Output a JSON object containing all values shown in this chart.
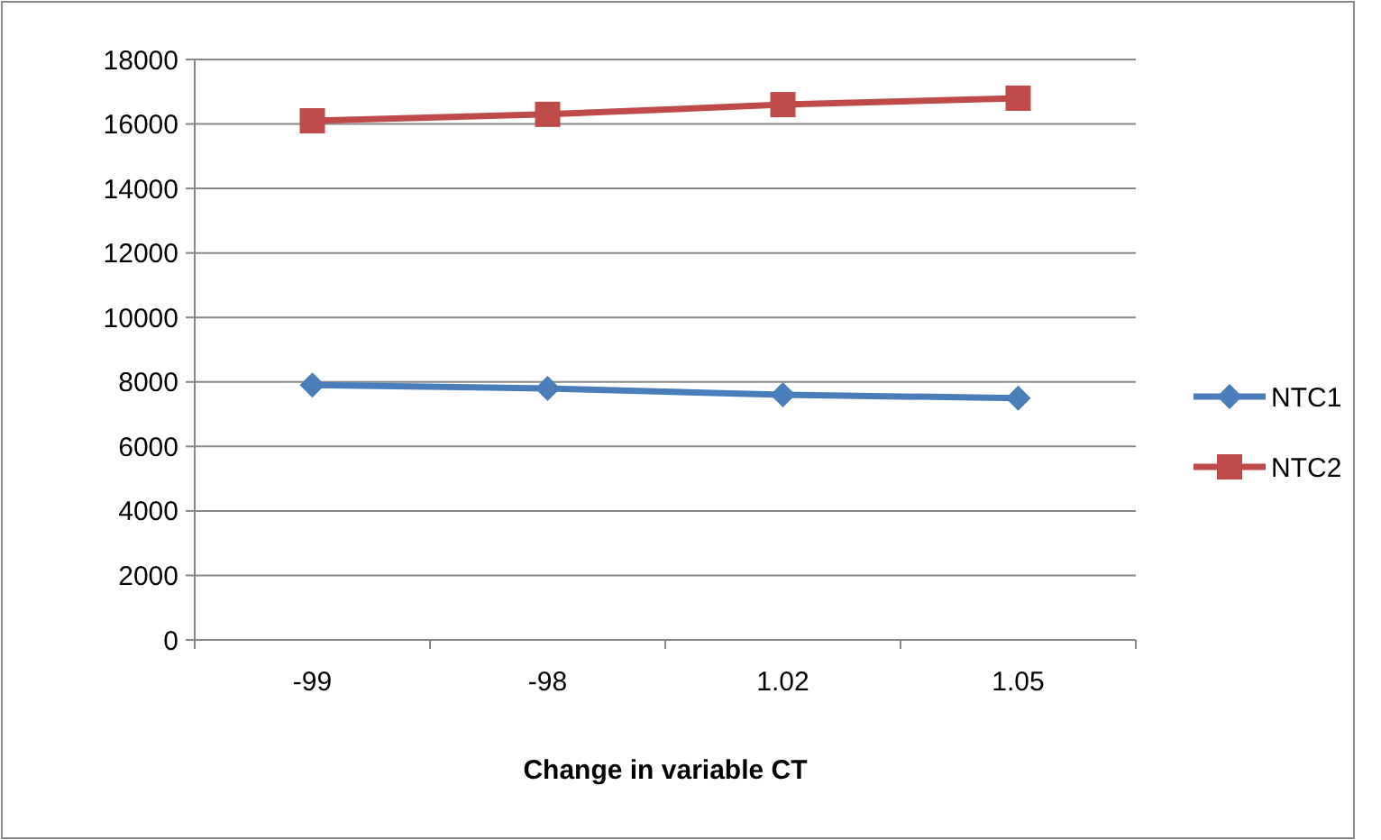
{
  "chart_data": {
    "type": "line",
    "xlabel": "Change in variable CT",
    "categories": [
      "-99",
      "-98",
      "1.02",
      "1.05"
    ],
    "series": [
      {
        "name": "NTC1",
        "color": "#4a7ebb",
        "marker": "diamond",
        "values": [
          7900,
          7800,
          7600,
          7500
        ]
      },
      {
        "name": "NTC2",
        "color": "#be4b48",
        "marker": "square",
        "values": [
          16100,
          16300,
          16600,
          16800
        ]
      }
    ],
    "ylim": [
      0,
      18000
    ],
    "yticks": [
      0,
      2000,
      4000,
      6000,
      8000,
      10000,
      12000,
      14000,
      16000,
      18000
    ],
    "grid": "y",
    "legend": "right"
  }
}
